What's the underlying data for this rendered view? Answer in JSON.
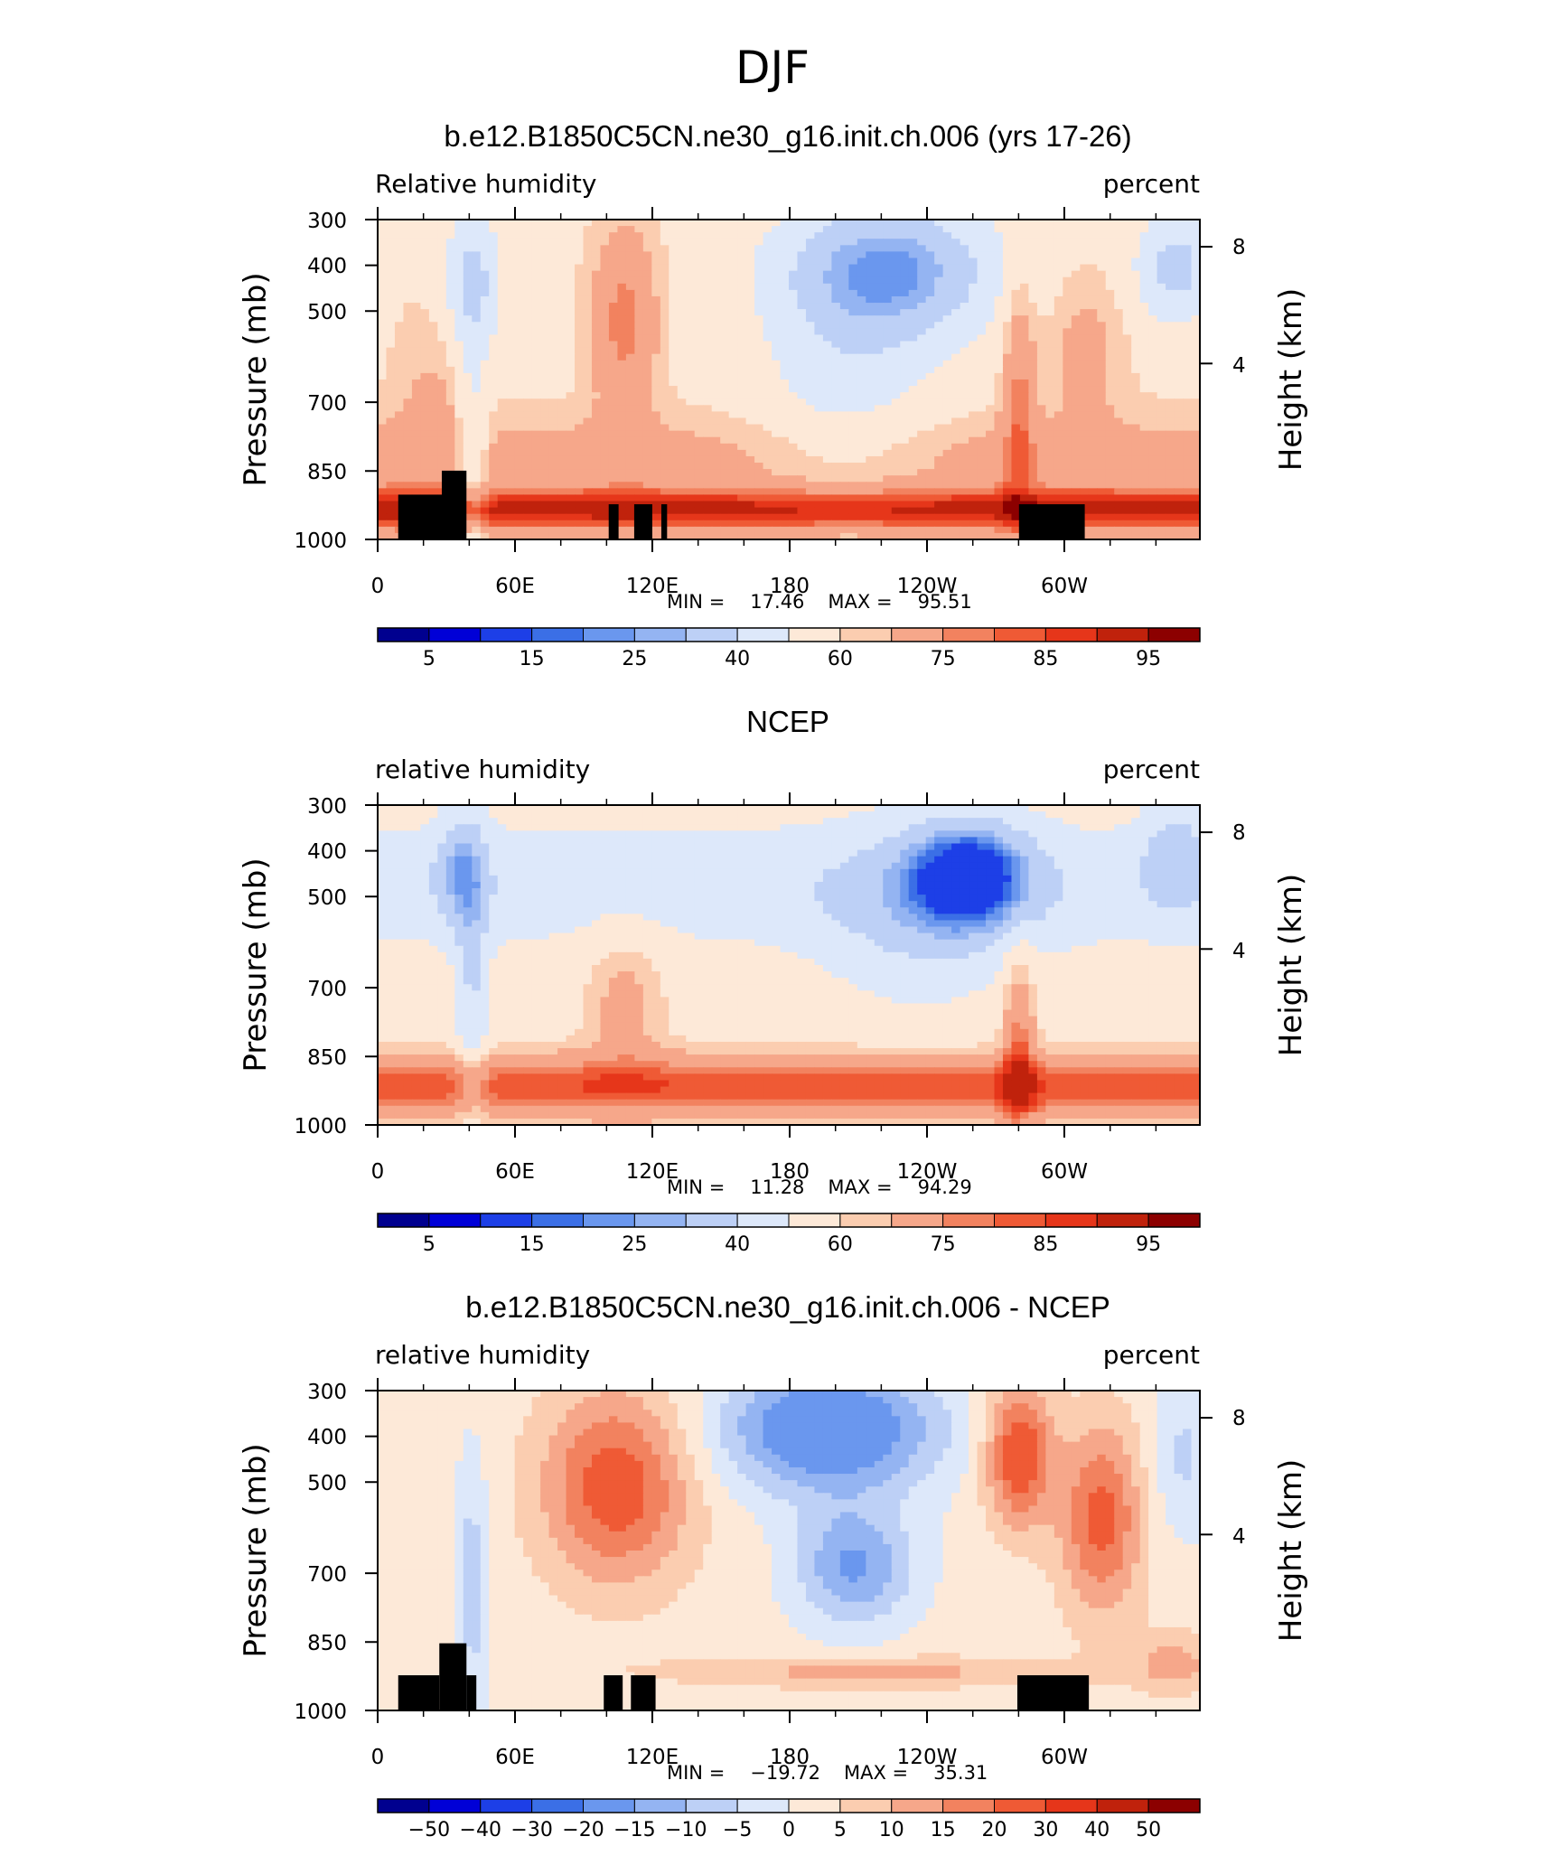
{
  "figure": {
    "title": "DJF"
  },
  "colorbars": {
    "rh": {
      "colors": [
        "#00008f",
        "#0000d7",
        "#1d3fe7",
        "#3b6fe6",
        "#6a97ee",
        "#94b4f2",
        "#bdd0f6",
        "#dde8fa",
        "#fde9d8",
        "#fbcdb0",
        "#f6a78a",
        "#f2825f",
        "#ef5a35",
        "#e6361a",
        "#c0220c",
        "#8c0000"
      ],
      "labels": [
        "5",
        "15",
        "25",
        "40",
        "60",
        "75",
        "85",
        "95"
      ]
    },
    "diff": {
      "colors": [
        "#00008f",
        "#0000d7",
        "#1d3fe7",
        "#3b6fe6",
        "#6a97ee",
        "#94b4f2",
        "#bdd0f6",
        "#dde8fa",
        "#fde9d8",
        "#fbcdb0",
        "#f6a78a",
        "#f2825f",
        "#ef5a35",
        "#e6361a",
        "#c0220c",
        "#8c0000"
      ],
      "labels": [
        "−50",
        "−40",
        "−30",
        "−20",
        "−15",
        "−10",
        "−5",
        "0",
        "5",
        "10",
        "15",
        "20",
        "30",
        "40",
        "50"
      ]
    }
  },
  "chart_data": [
    {
      "type": "heatmap",
      "title": "b.e12.B1850C5CN.ne30_g16.init.ch.006 (yrs 17-26)",
      "left_label": "Relative humidity",
      "right_label": "percent",
      "ylabel": "Pressure (mb)",
      "ylabel_right": "Height (km)",
      "x_ticks": [
        "0",
        "60E",
        "120E",
        "180",
        "120W",
        "60W"
      ],
      "y_ticks": [
        "300",
        "400",
        "500",
        "700",
        "850",
        "1000"
      ],
      "y_ticks_right": [
        "8",
        "4"
      ],
      "min": "17.46",
      "max": "95.51",
      "colorbar": "rh"
    },
    {
      "type": "heatmap",
      "title": "NCEP",
      "left_label": "relative humidity",
      "right_label": "percent",
      "ylabel": "Pressure (mb)",
      "ylabel_right": "Height (km)",
      "x_ticks": [
        "0",
        "60E",
        "120E",
        "180",
        "120W",
        "60W"
      ],
      "y_ticks": [
        "300",
        "400",
        "500",
        "700",
        "850",
        "1000"
      ],
      "y_ticks_right": [
        "8",
        "4"
      ],
      "min": "11.28",
      "max": "94.29",
      "colorbar": "rh"
    },
    {
      "type": "heatmap",
      "title": "b.e12.B1850C5CN.ne30_g16.init.ch.006 - NCEP",
      "left_label": "relative humidity",
      "right_label": "percent",
      "ylabel": "Pressure (mb)",
      "ylabel_right": "Height (km)",
      "x_ticks": [
        "0",
        "60E",
        "120E",
        "180",
        "120W",
        "60W"
      ],
      "y_ticks": [
        "300",
        "400",
        "500",
        "700",
        "850",
        "1000"
      ],
      "y_ticks_right": [
        "8",
        "4"
      ],
      "min": "−19.72",
      "max": "35.31",
      "colorbar": "diff"
    }
  ]
}
